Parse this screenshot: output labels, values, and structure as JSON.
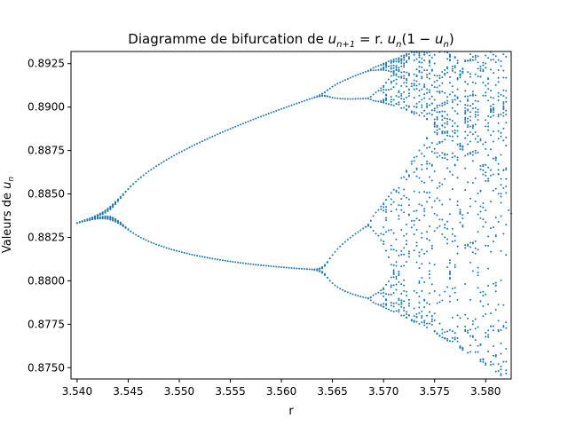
{
  "chart_data": {
    "type": "scatter",
    "title_parts": {
      "prefix": "Diagramme de bifurcation de ",
      "u": "u",
      "sub_n_plus_1": "n+1",
      "eq": " = r. ",
      "sub_n": "n",
      "rest_open": "(1 − ",
      "rest_close": ")"
    },
    "xlabel": "r",
    "ylabel_prefix": "Valeurs de ",
    "ylabel_var": "u",
    "ylabel_sub": "n",
    "xlim": [
      3.5394,
      3.5825
    ],
    "ylim": [
      0.87435,
      0.8932
    ],
    "xticks": [
      {
        "value": 3.54,
        "label": "3.540"
      },
      {
        "value": 3.545,
        "label": "3.545"
      },
      {
        "value": 3.55,
        "label": "3.550"
      },
      {
        "value": 3.555,
        "label": "3.555"
      },
      {
        "value": 3.56,
        "label": "3.560"
      },
      {
        "value": 3.565,
        "label": "3.565"
      },
      {
        "value": 3.57,
        "label": "3.570"
      },
      {
        "value": 3.575,
        "label": "3.575"
      },
      {
        "value": 3.58,
        "label": "3.580"
      }
    ],
    "yticks": [
      {
        "value": 0.875,
        "label": "0.8750"
      },
      {
        "value": 0.8775,
        "label": "0.8775"
      },
      {
        "value": 0.88,
        "label": "0.8800"
      },
      {
        "value": 0.8825,
        "label": "0.8825"
      },
      {
        "value": 0.885,
        "label": "0.8850"
      },
      {
        "value": 0.8875,
        "label": "0.8875"
      },
      {
        "value": 0.89,
        "label": "0.8900"
      },
      {
        "value": 0.8925,
        "label": "0.8925"
      }
    ],
    "series": [
      {
        "color": "#1f77b4",
        "r_start": 3.54,
        "r_end": 3.5825,
        "r_step": 0.00025,
        "transient": 200,
        "iterations": 120,
        "u0": 0.5
      }
    ],
    "grid": false,
    "legend": "none"
  }
}
